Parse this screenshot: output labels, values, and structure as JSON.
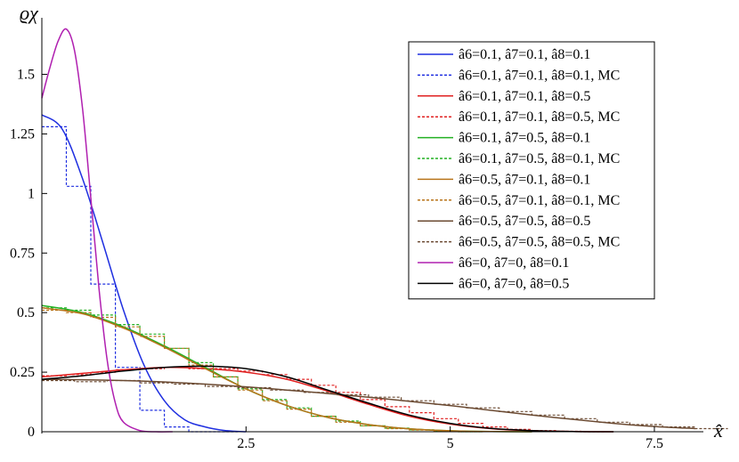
{
  "chart_data": {
    "type": "line",
    "xlabel": "x̂",
    "ylabel": "ϱχ",
    "xlim": [
      0,
      8.1
    ],
    "ylim": [
      0,
      1.7
    ],
    "x_ticks": [
      {
        "v": 2.5,
        "label": "2.5"
      },
      {
        "v": 5,
        "label": "5"
      },
      {
        "v": 7.5,
        "label": "7.5"
      }
    ],
    "y_ticks": [
      {
        "v": 0,
        "label": "0"
      },
      {
        "v": 0.25,
        "label": "0.25"
      },
      {
        "v": 0.5,
        "label": "0.5"
      },
      {
        "v": 0.75,
        "label": "0.75"
      },
      {
        "v": 1,
        "label": "1"
      },
      {
        "v": 1.25,
        "label": "1.25"
      },
      {
        "v": 1.5,
        "label": "1.5"
      }
    ],
    "legend_position": "top-right",
    "series": [
      {
        "name": "â6=0.1, â7=0.1, â8=0.1",
        "style": "solid",
        "color": "#1f2fe0",
        "x": [
          0,
          0.25,
          0.5,
          0.75,
          1.0,
          1.25,
          1.5,
          1.75,
          2.0,
          2.25,
          2.5
        ],
        "y": [
          1.33,
          1.27,
          1.06,
          0.79,
          0.51,
          0.28,
          0.13,
          0.05,
          0.02,
          0.005,
          0.0
        ]
      },
      {
        "name": "â6=0.1, â7=0.1, â8=0.1, MC",
        "style": "step",
        "color": "#1f2fe0",
        "x": [
          0,
          0.3,
          0.6,
          0.9,
          1.2,
          1.5,
          1.8,
          2.1
        ],
        "y": [
          1.28,
          1.03,
          0.62,
          0.27,
          0.09,
          0.02,
          0.0,
          0.0
        ]
      },
      {
        "name": "â6=0.1, â7=0.1, â8=0.5",
        "style": "solid",
        "color": "#e02020",
        "x": [
          0,
          0.5,
          1,
          1.5,
          2,
          2.5,
          3,
          3.5,
          4,
          4.5,
          5,
          5.5,
          6,
          6.5,
          7
        ],
        "y": [
          0.23,
          0.245,
          0.26,
          0.27,
          0.265,
          0.25,
          0.22,
          0.17,
          0.115,
          0.065,
          0.032,
          0.013,
          0.004,
          0.001,
          0.0
        ]
      },
      {
        "name": "â6=0.1, â7=0.1, â8=0.5, MC",
        "style": "step",
        "color": "#e02020",
        "x": [
          0,
          0.3,
          0.6,
          0.9,
          1.2,
          1.5,
          1.8,
          2.1,
          2.4,
          2.7,
          3.0,
          3.3,
          3.6,
          3.9,
          4.2,
          4.5,
          4.8,
          5.1,
          5.4,
          5.7,
          6.0,
          6.3,
          6.6
        ],
        "y": [
          0.235,
          0.24,
          0.25,
          0.26,
          0.265,
          0.27,
          0.265,
          0.265,
          0.255,
          0.24,
          0.22,
          0.195,
          0.165,
          0.135,
          0.105,
          0.08,
          0.055,
          0.035,
          0.02,
          0.01,
          0.005,
          0.002,
          0.0
        ]
      },
      {
        "name": "â6=0.1, â7=0.5, â8=0.1",
        "style": "solid",
        "color": "#22b022",
        "x": [
          0,
          0.5,
          1,
          1.5,
          2,
          2.5,
          3,
          3.5,
          4,
          4.5,
          5,
          5.5,
          6
        ],
        "y": [
          0.53,
          0.5,
          0.44,
          0.36,
          0.27,
          0.18,
          0.11,
          0.06,
          0.03,
          0.012,
          0.004,
          0.001,
          0.0
        ]
      },
      {
        "name": "â6=0.1, â7=0.5, â8=0.1, MC",
        "style": "step",
        "color": "#22b022",
        "x": [
          0,
          0.3,
          0.6,
          0.9,
          1.2,
          1.5,
          1.8,
          2.1,
          2.4,
          2.7,
          3.0,
          3.3,
          3.6,
          3.9,
          4.2,
          4.5,
          4.8,
          5.1
        ],
        "y": [
          0.52,
          0.51,
          0.49,
          0.45,
          0.41,
          0.35,
          0.29,
          0.23,
          0.18,
          0.135,
          0.1,
          0.065,
          0.045,
          0.025,
          0.015,
          0.008,
          0.003,
          0.0
        ]
      },
      {
        "name": "â6=0.5, â7=0.1, â8=0.1",
        "style": "solid",
        "color": "#b8741a",
        "x": [
          0,
          0.5,
          1,
          1.5,
          2,
          2.5,
          3,
          3.5,
          4,
          4.5,
          5,
          5.5,
          6
        ],
        "y": [
          0.52,
          0.495,
          0.435,
          0.355,
          0.265,
          0.18,
          0.11,
          0.06,
          0.03,
          0.012,
          0.004,
          0.001,
          0.0
        ]
      },
      {
        "name": "â6=0.5, â7=0.1, â8=0.1, MC",
        "style": "step",
        "color": "#b8741a",
        "x": [
          0,
          0.3,
          0.6,
          0.9,
          1.2,
          1.5,
          1.8,
          2.1,
          2.4,
          2.7,
          3.0,
          3.3,
          3.6,
          3.9,
          4.2,
          4.5,
          4.8,
          5.1
        ],
        "y": [
          0.51,
          0.5,
          0.48,
          0.44,
          0.4,
          0.35,
          0.28,
          0.23,
          0.175,
          0.13,
          0.095,
          0.065,
          0.04,
          0.025,
          0.013,
          0.007,
          0.003,
          0.0
        ]
      },
      {
        "name": "â6=0.5, â7=0.5, â8=0.5",
        "style": "solid",
        "color": "#6b4a32",
        "x": [
          0,
          1,
          2,
          3,
          4,
          5,
          6,
          7,
          7.5,
          8
        ],
        "y": [
          0.22,
          0.215,
          0.2,
          0.175,
          0.145,
          0.11,
          0.07,
          0.035,
          0.022,
          0.013
        ]
      },
      {
        "name": "â6=0.5, â7=0.5, â8=0.5, MC",
        "style": "step",
        "color": "#6b4a32",
        "x": [
          0,
          0.4,
          0.8,
          1.2,
          1.6,
          2.0,
          2.4,
          2.8,
          3.2,
          3.6,
          4.0,
          4.4,
          4.8,
          5.2,
          5.6,
          6.0,
          6.4,
          6.8,
          7.2,
          7.6,
          8.0
        ],
        "y": [
          0.215,
          0.21,
          0.215,
          0.205,
          0.2,
          0.19,
          0.185,
          0.175,
          0.165,
          0.155,
          0.145,
          0.13,
          0.115,
          0.1,
          0.085,
          0.07,
          0.055,
          0.04,
          0.03,
          0.02,
          0.013
        ]
      },
      {
        "name": "â6=0, â7=0, â8=0.1",
        "style": "solid",
        "color": "#b020b0",
        "x": [
          0,
          0.1,
          0.2,
          0.3,
          0.4,
          0.5,
          0.6,
          0.7,
          0.8,
          0.9,
          1.0,
          1.2,
          1.4,
          1.6
        ],
        "y": [
          1.4,
          1.53,
          1.64,
          1.69,
          1.6,
          1.35,
          0.98,
          0.6,
          0.3,
          0.12,
          0.04,
          0.005,
          0.0,
          0.0
        ]
      },
      {
        "name": "â6=0, â7=0, â8=0.5",
        "style": "solid",
        "color": "#000000",
        "x": [
          0,
          0.5,
          1,
          1.5,
          2,
          2.5,
          3,
          3.5,
          4,
          4.5,
          5,
          5.5,
          6,
          6.5,
          7
        ],
        "y": [
          0.22,
          0.235,
          0.255,
          0.27,
          0.275,
          0.265,
          0.23,
          0.175,
          0.12,
          0.07,
          0.035,
          0.014,
          0.005,
          0.001,
          0.0
        ]
      }
    ]
  }
}
